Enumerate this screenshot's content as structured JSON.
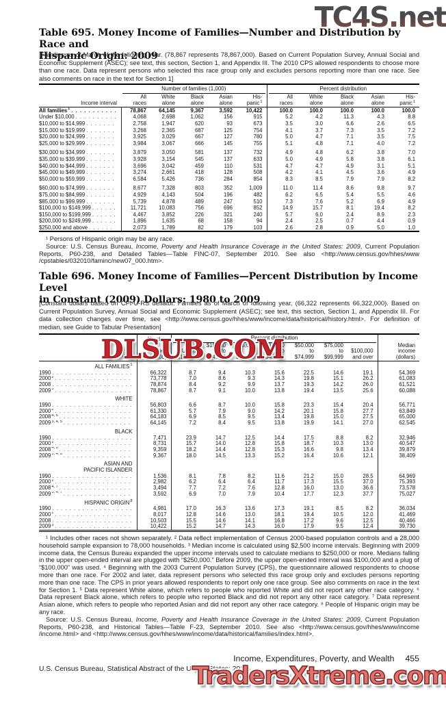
{
  "watermarks": {
    "top": "TC4S.net",
    "top_color": "#48484c",
    "middle": "DLSUB.COM",
    "middle_color": "#c3232b",
    "bottom": "TradersXtreme.com",
    "bottom_color": "#e0716d"
  },
  "table695": {
    "title_lines": [
      "Table 695. Money Income of Families—Number and Distribution by Race and",
      "Hispanic Origin: 2009"
    ],
    "note": "[Families as of March of the following year. (78,867 represents 78,867,000). Based on Current Population Survey, Annual Social and Economic Supplement (ASEC); see text, this section, Section 1, and Appendix III. The 2010 CPS allowed respondents to choose more than one race. Data represent persons who selected this race group only and excludes persons reporting more than one race. See also comments on race in the text for Section 1]",
    "header": {
      "label_col": "Income interval",
      "group1": "Number of families (1,000)",
      "group2": "Percent distribution",
      "subcols": [
        {
          "l1": "All",
          "l2": "races",
          "sup": ""
        },
        {
          "l1": "White",
          "l2": "alone",
          "sup": ""
        },
        {
          "l1": "Black",
          "l2": "alone",
          "sup": ""
        },
        {
          "l1": "Asian",
          "l2": "alone",
          "sup": ""
        },
        {
          "l1": "His-",
          "l2": "panic",
          "sup": "1"
        }
      ]
    },
    "rows": [
      {
        "label": "All families",
        "sup": "1",
        "bold": true,
        "gap": false,
        "v": [
          "78,867",
          "64,145",
          "9,367",
          "3,592",
          "10,422",
          "100.0",
          "100.0",
          "100.0",
          "100.0",
          "100.0"
        ]
      },
      {
        "label": "Under $10,000",
        "sup": "",
        "bold": false,
        "gap": false,
        "v": [
          "4,068",
          "2,698",
          "1,062",
          "156",
          "915",
          "5.2",
          "4.2",
          "11.3",
          "4.3",
          "8.8"
        ]
      },
      {
        "label": "$10,000 to $14,999",
        "sup": "",
        "bold": false,
        "gap": false,
        "v": [
          "2,758",
          "1,947",
          "620",
          "93",
          "673",
          "3.5",
          "3.0",
          "6.6",
          "2.6",
          "6.5"
        ]
      },
      {
        "label": "$15,000 to $19,999",
        "sup": "",
        "bold": false,
        "gap": false,
        "v": [
          "3,268",
          "2,365",
          "687",
          "125",
          "754",
          "4.1",
          "3.7",
          "7.3",
          "3.5",
          "7.2"
        ]
      },
      {
        "label": "$20,000 to $24,999",
        "sup": "",
        "bold": false,
        "gap": false,
        "v": [
          "3,925",
          "3,029",
          "667",
          "127",
          "780",
          "5.0",
          "4.7",
          "7.1",
          "3.5",
          "7.5"
        ]
      },
      {
        "label": "$25,000 to $29,999",
        "sup": "",
        "bold": false,
        "gap": false,
        "v": [
          "3,984",
          "3,067",
          "666",
          "145",
          "755",
          "5.1",
          "4.8",
          "7.1",
          "4.0",
          "7.2"
        ]
      },
      {
        "label": "$30,000 to $34,999",
        "sup": "",
        "bold": false,
        "gap": true,
        "v": [
          "3,879",
          "3,050",
          "581",
          "137",
          "732",
          "4.9",
          "4.8",
          "6.2",
          "3.8",
          "7.0"
        ]
      },
      {
        "label": "$35,000 to $39,999",
        "sup": "",
        "bold": false,
        "gap": false,
        "v": [
          "3,928",
          "3,154",
          "545",
          "137",
          "633",
          "5.0",
          "4.9",
          "5.8",
          "3.8",
          "6.1"
        ]
      },
      {
        "label": "$40,000 to $44,999",
        "sup": "",
        "bold": false,
        "gap": false,
        "v": [
          "3,696",
          "3,042",
          "459",
          "110",
          "531",
          "4.7",
          "4.7",
          "4.9",
          "3.1",
          "5.1"
        ]
      },
      {
        "label": "$45,000 to $49,999",
        "sup": "",
        "bold": false,
        "gap": false,
        "v": [
          "3,274",
          "2,661",
          "418",
          "128",
          "508",
          "4.2",
          "4.1",
          "4.5",
          "3.6",
          "4.9"
        ]
      },
      {
        "label": "$50,000 to $59,999",
        "sup": "",
        "bold": false,
        "gap": false,
        "v": [
          "6,584",
          "5,426",
          "736",
          "284",
          "854",
          "8.3",
          "8.5",
          "7.9",
          "7.9",
          "8.2"
        ]
      },
      {
        "label": "$60,000 to $74,999",
        "sup": "",
        "bold": false,
        "gap": true,
        "v": [
          "8,677",
          "7,328",
          "803",
          "352",
          "1,009",
          "11.0",
          "11.4",
          "8.6",
          "9.8",
          "9.7"
        ]
      },
      {
        "label": "$75,000 to $84,999",
        "sup": "",
        "bold": false,
        "gap": false,
        "v": [
          "4,929",
          "4,143",
          "504",
          "196",
          "482",
          "6.2",
          "6.5",
          "5.4",
          "5.5",
          "4.6"
        ]
      },
      {
        "label": "$85,000 to $99,999",
        "sup": "",
        "bold": false,
        "gap": false,
        "v": [
          "5,739",
          "4,878",
          "489",
          "247",
          "510",
          "7.3",
          "7.6",
          "5.2",
          "6.9",
          "4.9"
        ]
      },
      {
        "label": "$100,000 to $149,999",
        "sup": "",
        "bold": false,
        "gap": false,
        "v": [
          "11,721",
          "10,083",
          "756",
          "696",
          "852",
          "14.9",
          "15.7",
          "8.1",
          "19.4",
          "8.2"
        ]
      },
      {
        "label": "$150,000 to $199,999",
        "sup": "",
        "bold": false,
        "gap": false,
        "v": [
          "4,467",
          "3,852",
          "226",
          "321",
          "240",
          "5.7",
          "6.0",
          "2.4",
          "8.9",
          "2.3"
        ]
      },
      {
        "label": "$200,000 to $249,999",
        "sup": "",
        "bold": false,
        "gap": false,
        "v": [
          "1,896",
          "1,635",
          "68",
          "158",
          "94",
          "2.4",
          "2.5",
          "0.7",
          "4.4",
          "0.9"
        ]
      },
      {
        "label": "$250,000 and above",
        "sup": "",
        "bold": false,
        "gap": false,
        "v": [
          "2,073",
          "1,789",
          "82",
          "179",
          "103",
          "2.6",
          "2.8",
          "0.9",
          "5.0",
          "1.0"
        ]
      }
    ],
    "footnote": "¹ Persons of Hispanic origin may be any race.",
    "source": {
      "pre": "Source: U.S. Census Bureau, ",
      "italic": "Income, Poverty and Health Insurance Coverage in the United States: 2009",
      "post": ", Current Population Reports, P60-238, and Detailed Tables—Table FINC-07, September 2010. See also <http://www.census.gov/hhes/www /cpstables/032010/faminc/new07_000.htm>."
    }
  },
  "table696": {
    "title_lines": [
      "Table 696. Money Income of Families—Percent Distribution by Income Level",
      "in Constant (2009) Dollars: 1980 to 2009"
    ],
    "note": "[Constant dollars based on CPI-U-RS deflator. Families as of March of following year, (66,322 represents 66,322,000). Based on Current Population Survey, Annual Social and Economic Supplement (ASEC); see text, this section, Section 1, and Appendix III. For data collection changes over time, see <http://www.census.gov/hhes/www/income/data/historical/history.html>. For definition of median, see Guide to Tabular Presentation]",
    "header": {
      "label_col": "Year",
      "number_col_lines": [
        "Number",
        "of",
        "families",
        "(1,000)"
      ],
      "spanner": "Percent distribution",
      "pct_cols": [
        [
          "",
          "Under",
          "$15,000"
        ],
        [
          "$15,000",
          "to",
          "$24,999"
        ],
        [
          "$25,000",
          "to",
          "$34,999"
        ],
        [
          "$35,000",
          "to",
          "$49,999"
        ],
        [
          "$50,000",
          "to",
          "$74,999"
        ],
        [
          "$75,000",
          "to",
          "$99,999"
        ],
        [
          "",
          "$100,000",
          "and over"
        ]
      ],
      "median_col_lines": [
        "Median",
        "income",
        "(dollars)"
      ]
    },
    "rows": [
      {
        "group": [
          "ALL FAMILIES"
        ],
        "sup": "1"
      },
      {
        "label": "1990",
        "sup": "",
        "v": [
          "66,322",
          "8.7",
          "9.4",
          "10.3",
          "15.6",
          "22.5",
          "14.6",
          "19.1",
          "54,369"
        ]
      },
      {
        "label": "2000",
        "sup": "2",
        "v": [
          "73,778",
          "7.0",
          "8.6",
          "9.3",
          "14.3",
          "19.8",
          "15.1",
          "26.2",
          "61,083"
        ]
      },
      {
        "label": "2008",
        "sup": "",
        "v": [
          "78,874",
          "8.4",
          "9.2",
          "9.9",
          "13.7",
          "19.3",
          "14.2",
          "26.0",
          "61,521"
        ]
      },
      {
        "label": "2009",
        "sup": "3",
        "v": [
          "78,867",
          "8.7",
          "9.1",
          "10.0",
          "13.8",
          "19.4",
          "13.5",
          "25.6",
          "60,088"
        ]
      },
      {
        "group": [
          "WHITE"
        ],
        "sup": ""
      },
      {
        "label": "1990",
        "sup": "",
        "v": [
          "56,803",
          "6.6",
          "8.7",
          "10.0",
          "15.8",
          "23.3",
          "15.4",
          "20.4",
          "56,771"
        ]
      },
      {
        "label": "2000",
        "sup": "2",
        "v": [
          "61,330",
          "5.7",
          "7.9",
          "9.0",
          "14.2",
          "20.1",
          "15.8",
          "27.7",
          "63,849"
        ]
      },
      {
        "label": "2008",
        "sup": "4, 5",
        "v": [
          "64,183",
          "6.9",
          "8.5",
          "9.5",
          "13.4",
          "19.8",
          "15.0",
          "27.5",
          "65,000"
        ]
      },
      {
        "label": "2009",
        "sup": "3, 4, 5",
        "v": [
          "64,145",
          "7.2",
          "8.4",
          "9.5",
          "13.8",
          "19.9",
          "14.1",
          "27.0",
          "62,545"
        ]
      },
      {
        "group": [
          "BLACK"
        ],
        "sup": ""
      },
      {
        "label": "1990",
        "sup": "",
        "v": [
          "7,471",
          "23.9",
          "14.7",
          "12.5",
          "14.4",
          "17.5",
          "8.8",
          "8.2",
          "32,946"
        ]
      },
      {
        "label": "2000",
        "sup": "2",
        "v": [
          "8,731",
          "15.7",
          "14.0",
          "12.8",
          "15.8",
          "18.7",
          "10.3",
          "13.0",
          "40,547"
        ]
      },
      {
        "label": "2008",
        "sup": "4, 6",
        "v": [
          "9,359",
          "18.2",
          "14.4",
          "12.8",
          "15.3",
          "16.6",
          "9.8",
          "13.4",
          "39,879"
        ]
      },
      {
        "label": "2009",
        "sup": "3, 4, 6",
        "v": [
          "9,367",
          "18.0",
          "14.5",
          "13.3",
          "15.2",
          "16.4",
          "10.6",
          "12.1",
          "38,409"
        ]
      },
      {
        "group": [
          "ASIAN AND",
          "PACIFIC ISLANDER"
        ],
        "sup": ""
      },
      {
        "label": "1990",
        "sup": "",
        "v": [
          "1,536",
          "8.1",
          "7.8",
          "8.2",
          "11.6",
          "21.2",
          "15.0",
          "28.5",
          "64,969"
        ]
      },
      {
        "label": "2000",
        "sup": "2",
        "v": [
          "2,982",
          "6.2",
          "6.4",
          "6.4",
          "11.7",
          "17.3",
          "15.5",
          "37.0",
          "75,393"
        ]
      },
      {
        "label": "2008",
        "sup": "4, 7",
        "v": [
          "3,494",
          "7.7",
          "7.2",
          "7.6",
          "12.8",
          "16.0",
          "13.0",
          "36.6",
          "73,578"
        ]
      },
      {
        "label": "2009",
        "sup": "3, 4, 7",
        "v": [
          "3,592",
          "6.9",
          "7.0",
          "7.9",
          "10.4",
          "17.7",
          "12.3",
          "37.7",
          "75,027"
        ]
      },
      {
        "group": [
          "HISPANIC ORIGIN"
        ],
        "sup": "8"
      },
      {
        "label": "1990",
        "sup": "",
        "v": [
          "4,981",
          "17.0",
          "16.3",
          "13.6",
          "17.3",
          "19.1",
          "8.5",
          "8.2",
          "36,034"
        ]
      },
      {
        "label": "2000",
        "sup": "2",
        "v": [
          "8,017",
          "12.8",
          "14.6",
          "13.0",
          "18.1",
          "19.4",
          "10.5",
          "12.0",
          "41,469"
        ]
      },
      {
        "label": "2008",
        "sup": "",
        "v": [
          "10,503",
          "15.5",
          "14.6",
          "14.1",
          "16.8",
          "17.2",
          "9.6",
          "12.5",
          "40,466"
        ]
      },
      {
        "label": "2009",
        "sup": "3",
        "v": [
          "10,422",
          "15.2",
          "14.7",
          "14.3",
          "16.0",
          "17.9",
          "9.5",
          "12.4",
          "39,730"
        ]
      }
    ],
    "footnote": "¹ Includes other races not shown separately. ² Data reflect implementation of Census 2000-based population controls and a 28,000 household sample expansion to 78,000 households. ³ Median income is calculated using $2,500 income intervals. Beginning with 2009 income data, the Census Bureau expanded the upper income intervals used to calculate medians to $250,000 or more. Medians falling in the upper open-ended interval are plugged with “$250,000.” Before 2009, the upper open-ended interval was $100,000 and a plug of “$100,000” was used. ⁴ Beginning with the 2003 Current Population Survey (CPS), the questionnaire allowed respondents to choose more than one race. For 2002 and later, data represent persons who selected this race group only and excludes persons reporting more than one race. The CPS in prior years allowed respondents to report only one race group. See also comments on race in the text for Section 1. ⁵ Data represent White alone, which refers to people who reported White and did not report any other race category. ⁶ Data represent Black alone, which refers to people who reported Black and did not report any other race category. ⁷ Data represent Asian alone, which refers to people who reported Asian and did not report any other race category. ⁸ People of Hispanic origin may be any race.",
    "source": {
      "pre": "Source: U.S. Census Bureau, ",
      "italic": "Income, Poverty and Health Insurance Coverage in the United States: 2009",
      "post": ", Current Population Reports, P60-238, and Historical Tables—Table F-23, September 2010. See also <http://www.census.gov/hhes/www/income /income.html> and <http://www.census.gov/hhes/www/income/data/historical/families/index.html>."
    }
  },
  "footer": {
    "right_text": "Income, Expenditures, Poverty, and Wealth",
    "page_number": "455",
    "left_text": "U.S. Census Bureau, Statistical Abstract of the United States: 2012"
  }
}
